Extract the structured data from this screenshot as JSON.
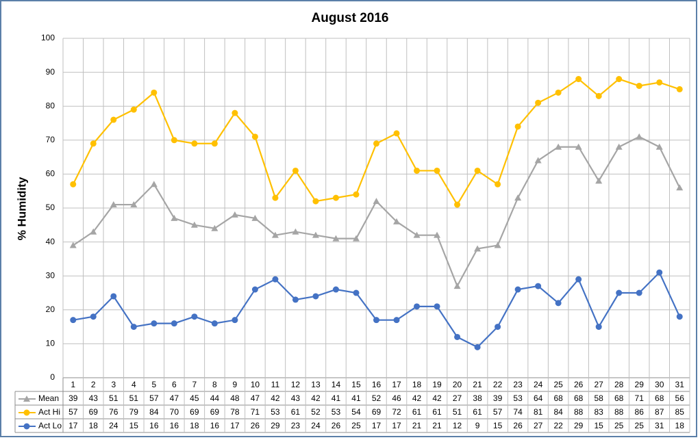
{
  "chart_data": {
    "type": "line",
    "title": "August 2016",
    "y_label": "% Humidity",
    "categories": [
      1,
      2,
      3,
      4,
      5,
      6,
      7,
      8,
      9,
      10,
      11,
      12,
      13,
      14,
      15,
      16,
      17,
      18,
      19,
      20,
      21,
      22,
      23,
      24,
      25,
      26,
      27,
      28,
      29,
      30,
      31
    ],
    "series": [
      {
        "name": "Mean",
        "color": "#a5a5a5",
        "marker": "triangle",
        "values": [
          39,
          43,
          51,
          51,
          57,
          47,
          45,
          44,
          48,
          47,
          42,
          43,
          42,
          41,
          41,
          52,
          46,
          42,
          42,
          27,
          38,
          39,
          53,
          64,
          68,
          68,
          58,
          68,
          71,
          68,
          56
        ]
      },
      {
        "name": "Act Hi",
        "color": "#ffc000",
        "marker": "circle",
        "values": [
          57,
          69,
          76,
          79,
          84,
          70,
          69,
          69,
          78,
          71,
          53,
          61,
          52,
          53,
          54,
          69,
          72,
          61,
          61,
          51,
          61,
          57,
          74,
          81,
          84,
          88,
          83,
          88,
          86,
          87,
          85
        ]
      },
      {
        "name": "Act Lo",
        "color": "#4472c4",
        "marker": "circle",
        "values": [
          17,
          18,
          24,
          15,
          16,
          16,
          18,
          16,
          17,
          26,
          29,
          23,
          24,
          26,
          25,
          17,
          17,
          21,
          21,
          12,
          9,
          15,
          26,
          27,
          22,
          29,
          15,
          25,
          25,
          31,
          18
        ]
      }
    ],
    "ylim": [
      0,
      100
    ],
    "yticks": [
      0,
      10,
      20,
      30,
      40,
      50,
      60,
      70,
      80,
      90,
      100
    ],
    "grid": true,
    "legend": "data-table"
  }
}
